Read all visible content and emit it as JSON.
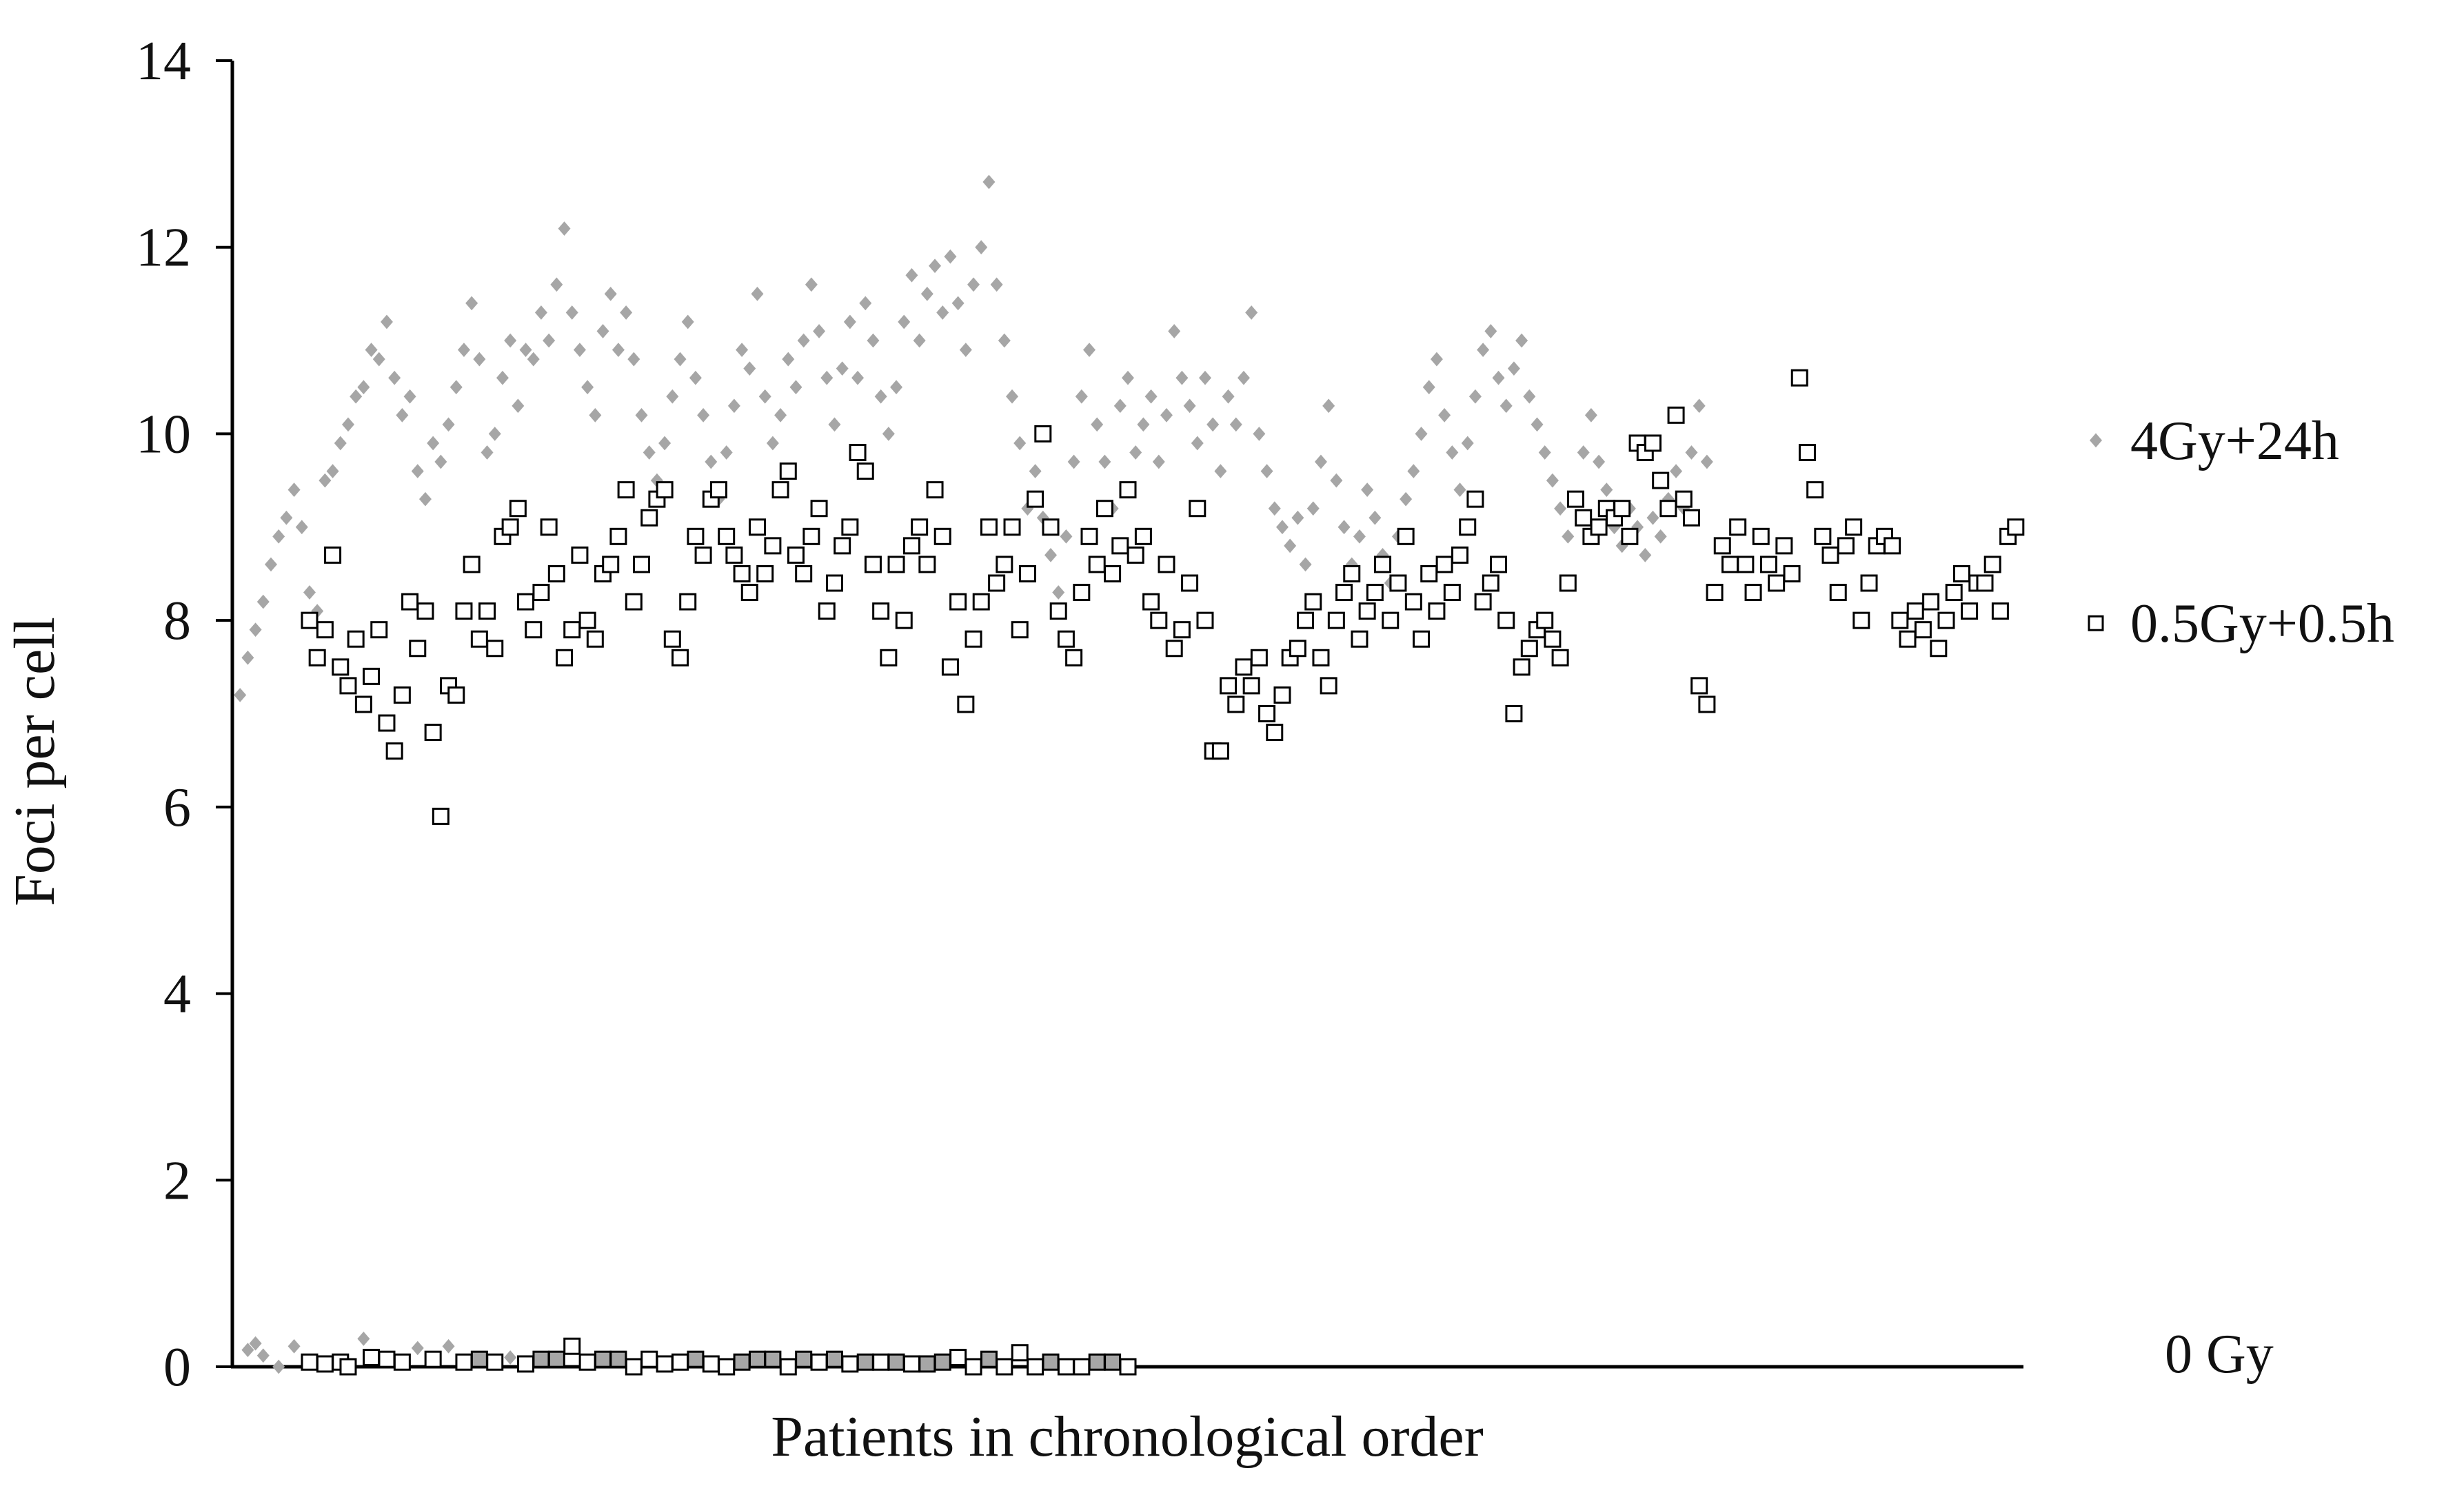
{
  "chart_data": {
    "type": "scatter",
    "title": "",
    "xlabel": "Patients in chronological order",
    "ylabel": "Foci per cell",
    "ylim": [
      0,
      14
    ],
    "yticks": [
      "0",
      "2",
      "4",
      "6",
      "8",
      "10",
      "12",
      "14"
    ],
    "grid": false,
    "legend_position": "right",
    "series": [
      {
        "name": "4Gy+24h",
        "marker": "diamond",
        "color": "#a6a6a6",
        "x_start": 1,
        "y": [
          7.2,
          7.6,
          7.9,
          8.2,
          8.6,
          8.9,
          9.1,
          9.4,
          9.0,
          8.3,
          8.1,
          9.5,
          9.6,
          9.9,
          10.1,
          10.4,
          10.5,
          10.9,
          10.8,
          11.2,
          10.6,
          10.2,
          10.4,
          9.6,
          9.3,
          9.9,
          9.7,
          10.1,
          10.5,
          10.9,
          11.4,
          10.8,
          9.8,
          10.0,
          10.6,
          11.0,
          10.3,
          10.9,
          10.8,
          11.3,
          11.0,
          11.6,
          12.2,
          11.3,
          10.9,
          10.5,
          10.2,
          11.1,
          11.5,
          10.9,
          11.3,
          10.8,
          10.2,
          9.8,
          9.5,
          9.9,
          10.4,
          10.8,
          11.2,
          10.6,
          10.2,
          9.7,
          9.3,
          9.8,
          10.3,
          10.9,
          10.7,
          11.5,
          10.4,
          9.9,
          10.2,
          10.8,
          10.5,
          11.0,
          11.6,
          11.1,
          10.6,
          10.1,
          10.7,
          11.2,
          10.6,
          11.4,
          11.0,
          10.4,
          10.0,
          10.5,
          11.2,
          11.7,
          11.0,
          11.5,
          11.8,
          11.3,
          11.9,
          11.4,
          10.9,
          11.6,
          12.0,
          12.7,
          11.6,
          11.0,
          10.4,
          9.9,
          9.2,
          9.6,
          9.1,
          8.7,
          8.3,
          8.9,
          9.7,
          10.4,
          10.9,
          10.1,
          9.7,
          9.2,
          10.3,
          10.6,
          9.8,
          10.1,
          10.4,
          9.7,
          10.2,
          11.1,
          10.6,
          10.3,
          9.9,
          10.6,
          10.1,
          9.6,
          10.4,
          10.1,
          10.6,
          11.3,
          10.0,
          9.6,
          9.2,
          9.0,
          8.8,
          9.1,
          8.6,
          9.2,
          9.7,
          10.3,
          9.5,
          9.0,
          8.6,
          8.9,
          9.4,
          9.1,
          8.7,
          8.4,
          8.9,
          9.3,
          9.6,
          10.0,
          10.5,
          10.8,
          10.2,
          9.8,
          9.4,
          9.9,
          10.4,
          10.9,
          11.1,
          10.6,
          10.3,
          10.7,
          11.0,
          10.4,
          10.1,
          9.8,
          9.5,
          9.2,
          8.9,
          9.3,
          9.8,
          10.2,
          9.7,
          9.4,
          9.0,
          8.8,
          9.2,
          9.0,
          8.7,
          9.1,
          8.9,
          9.3,
          9.6,
          9.2,
          9.8,
          10.3,
          9.7
        ]
      },
      {
        "name": "0.5Gy+0.5h",
        "marker": "square-open",
        "color": "#000000",
        "x_start": 10,
        "y": [
          8.0,
          7.6,
          7.9,
          8.7,
          7.5,
          7.3,
          7.8,
          7.1,
          7.4,
          7.9,
          6.9,
          6.6,
          7.2,
          8.2,
          7.7,
          8.1,
          6.8,
          5.9,
          7.3,
          7.2,
          8.1,
          8.6,
          7.8,
          8.1,
          7.7,
          8.9,
          9.0,
          9.2,
          8.2,
          7.9,
          8.3,
          9.0,
          8.5,
          7.6,
          7.9,
          8.7,
          8.0,
          7.8,
          8.5,
          8.6,
          8.9,
          9.4,
          8.2,
          8.6,
          9.1,
          9.3,
          9.4,
          7.8,
          7.6,
          8.2,
          8.9,
          8.7,
          9.3,
          9.4,
          8.9,
          8.7,
          8.5,
          8.3,
          9.0,
          8.5,
          8.8,
          9.4,
          9.6,
          8.7,
          8.5,
          8.9,
          9.2,
          8.1,
          8.4,
          8.8,
          9.0,
          9.8,
          9.6,
          8.6,
          8.1,
          7.6,
          8.6,
          8.0,
          8.8,
          9.0,
          8.6,
          9.4,
          8.9,
          7.5,
          8.2,
          7.1,
          7.8,
          8.2,
          9.0,
          8.4,
          8.6,
          9.0,
          7.9,
          8.5,
          9.3,
          10.0,
          9.0,
          8.1,
          7.8,
          7.6,
          8.3,
          8.9,
          8.6,
          9.2,
          8.5,
          8.8,
          9.4,
          8.7,
          8.9,
          8.2,
          8.0,
          8.6,
          7.7,
          7.9,
          8.4,
          9.2,
          8.0,
          6.6,
          6.6,
          7.3,
          7.1,
          7.5,
          7.3,
          7.6,
          7.0,
          6.8,
          7.2,
          7.6,
          7.7,
          8.0,
          8.2,
          7.6,
          7.3,
          8.0,
          8.3,
          8.5,
          7.8,
          8.1,
          8.3,
          8.6,
          8.0,
          8.4,
          8.9,
          8.2,
          7.8,
          8.5,
          8.1,
          8.6,
          8.3,
          8.7,
          9.0,
          9.3,
          8.2,
          8.4,
          8.6,
          8.0,
          7.0,
          7.5,
          7.7,
          7.9,
          8.0,
          7.8,
          7.6,
          8.4,
          9.3,
          9.1,
          8.9,
          9.0,
          9.2,
          9.1,
          9.2,
          8.9,
          9.9,
          9.8,
          9.9,
          9.5,
          9.2,
          10.2,
          9.3,
          9.1,
          7.3,
          7.1,
          8.3,
          8.8,
          8.6,
          9.0,
          8.6,
          8.3,
          8.9,
          8.6,
          8.4,
          8.8,
          8.5,
          10.6,
          9.8,
          9.4,
          8.9,
          8.7,
          8.3,
          8.8,
          9.0,
          8.0,
          8.4,
          8.8,
          8.9,
          8.8,
          8.0,
          7.8,
          8.1,
          7.9,
          8.2,
          7.7,
          8.0,
          8.3,
          8.5,
          8.1,
          8.4,
          8.4,
          8.6,
          8.1,
          8.9,
          9.0
        ]
      },
      {
        "name": "0 Gy",
        "marker": "mixed",
        "color": "#a6a6a6",
        "points": [
          [
            2,
            0.18,
            "diamond"
          ],
          [
            3,
            0.25,
            "diamond"
          ],
          [
            4,
            0.12,
            "diamond"
          ],
          [
            6,
            0.0,
            "diamond"
          ],
          [
            8,
            0.22,
            "diamond"
          ],
          [
            10,
            0.05,
            "square-open"
          ],
          [
            12,
            0.03,
            "square-open"
          ],
          [
            14,
            0.05,
            "square-open"
          ],
          [
            15,
            0.0,
            "square-open"
          ],
          [
            17,
            0.3,
            "diamond"
          ],
          [
            18,
            0.1,
            "square-open"
          ],
          [
            20,
            0.08,
            "square-open"
          ],
          [
            22,
            0.05,
            "square-open"
          ],
          [
            24,
            0.2,
            "diamond"
          ],
          [
            26,
            0.08,
            "square-open"
          ],
          [
            28,
            0.22,
            "diamond"
          ],
          [
            30,
            0.05,
            "square-open"
          ],
          [
            32,
            0.08,
            "square-filled"
          ],
          [
            34,
            0.05,
            "square-open"
          ],
          [
            36,
            0.1,
            "diamond"
          ],
          [
            38,
            0.03,
            "square-open"
          ],
          [
            40,
            0.08,
            "square-filled"
          ],
          [
            42,
            0.08,
            "square-filled"
          ],
          [
            44,
            0.22,
            "square-open"
          ],
          [
            46,
            0.05,
            "square-open"
          ],
          [
            48,
            0.08,
            "square-filled"
          ],
          [
            50,
            0.08,
            "square-filled"
          ],
          [
            52,
            0.0,
            "square-open"
          ],
          [
            54,
            0.08,
            "square-open"
          ],
          [
            56,
            0.03,
            "square-open"
          ],
          [
            58,
            0.05,
            "square-open"
          ],
          [
            60,
            0.08,
            "square-filled"
          ],
          [
            62,
            0.03,
            "square-open"
          ],
          [
            64,
            0.0,
            "square-open"
          ],
          [
            66,
            0.05,
            "square-filled"
          ],
          [
            68,
            0.08,
            "square-filled"
          ],
          [
            70,
            0.08,
            "square-filled"
          ],
          [
            72,
            0.0,
            "square-open"
          ],
          [
            74,
            0.08,
            "square-filled"
          ],
          [
            76,
            0.05,
            "square-open"
          ],
          [
            78,
            0.08,
            "square-filled"
          ],
          [
            80,
            0.03,
            "square-open"
          ],
          [
            82,
            0.05,
            "square-filled"
          ],
          [
            84,
            0.05,
            "square-open"
          ],
          [
            86,
            0.05,
            "square-filled"
          ],
          [
            88,
            0.03,
            "square-open"
          ],
          [
            90,
            0.03,
            "square-filled"
          ],
          [
            92,
            0.05,
            "square-filled"
          ],
          [
            94,
            0.1,
            "square-open"
          ],
          [
            96,
            0.0,
            "square-open"
          ],
          [
            98,
            0.08,
            "square-filled"
          ],
          [
            100,
            0.0,
            "square-open"
          ],
          [
            102,
            0.15,
            "square-open"
          ],
          [
            104,
            0.0,
            "square-open"
          ],
          [
            106,
            0.05,
            "square-filled"
          ],
          [
            108,
            0.0,
            "square-open"
          ],
          [
            110,
            0.0,
            "square-open"
          ],
          [
            112,
            0.05,
            "square-filled"
          ],
          [
            114,
            0.05,
            "square-filled"
          ],
          [
            116,
            0.0,
            "square-open"
          ]
        ]
      }
    ]
  }
}
